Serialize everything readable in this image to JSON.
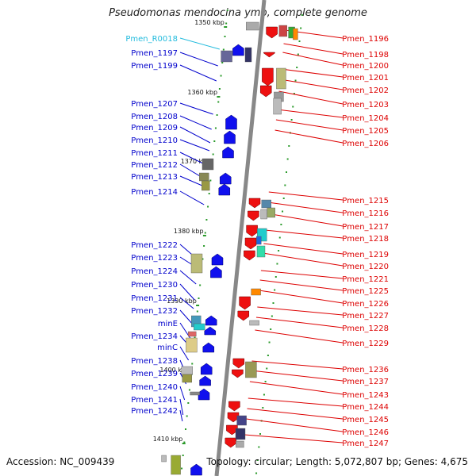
{
  "title": "Pseudomonas mendocina ymp, complete genome",
  "footer": {
    "accession": "Accession: NC_009439",
    "stats": "Topology: circular; Length: 5,072,807 bp; Genes: 4,675"
  },
  "colors": {
    "left_label": "#0000cc",
    "right_label": "#dd0000",
    "rna_label": "#22bbdd",
    "forward_arrow": "#1010ee",
    "reverse_arrow": "#ee1010",
    "backbone": "#888888",
    "tick": "#2a9a2a"
  },
  "scale_labels": [
    "1350 kbp",
    "1360 kbp",
    "1370 kbp",
    "1380 kbp",
    "1390 kbp",
    "1400 kbp",
    "1410 kbp"
  ],
  "left_labels": [
    {
      "text": "Pmen_R0018",
      "type": "rna"
    },
    {
      "text": "Pmen_1197"
    },
    {
      "text": "Pmen_1199"
    },
    {
      "text": "Pmen_1207"
    },
    {
      "text": "Pmen_1208"
    },
    {
      "text": "Pmen_1209"
    },
    {
      "text": "Pmen_1210"
    },
    {
      "text": "Pmen_1211"
    },
    {
      "text": "Pmen_1212"
    },
    {
      "text": "Pmen_1213"
    },
    {
      "text": "Pmen_1214"
    },
    {
      "text": "Pmen_1222"
    },
    {
      "text": "Pmen_1223"
    },
    {
      "text": "Pmen_1224"
    },
    {
      "text": "Pmen_1230"
    },
    {
      "text": "Pmen_1231"
    },
    {
      "text": "Pmen_1232"
    },
    {
      "text": "minE"
    },
    {
      "text": "Pmen_1234"
    },
    {
      "text": "minC"
    },
    {
      "text": "Pmen_1238"
    },
    {
      "text": "Pmen_1239"
    },
    {
      "text": "Pmen_1240"
    },
    {
      "text": "Pmen_1241"
    },
    {
      "text": "Pmen_1242"
    }
  ],
  "right_labels": [
    {
      "text": "Pmen_1196"
    },
    {
      "text": "Pmen_1198"
    },
    {
      "text": "Pmen_1200"
    },
    {
      "text": "Pmen_1201"
    },
    {
      "text": "Pmen_1202"
    },
    {
      "text": "Pmen_1203"
    },
    {
      "text": "Pmen_1204"
    },
    {
      "text": "Pmen_1205"
    },
    {
      "text": "Pmen_1206"
    },
    {
      "text": "Pmen_1215"
    },
    {
      "text": "Pmen_1216"
    },
    {
      "text": "Pmen_1217"
    },
    {
      "text": "Pmen_1218"
    },
    {
      "text": "Pmen_1219"
    },
    {
      "text": "Pmen_1220"
    },
    {
      "text": "Pmen_1221"
    },
    {
      "text": "Pmen_1225"
    },
    {
      "text": "Pmen_1226"
    },
    {
      "text": "Pmen_1227"
    },
    {
      "text": "Pmen_1228"
    },
    {
      "text": "Pmen_1229"
    },
    {
      "text": "Pmen_1236"
    },
    {
      "text": "Pmen_1237"
    },
    {
      "text": "Pmen_1243"
    },
    {
      "text": "Pmen_1244"
    },
    {
      "text": "Pmen_1245"
    },
    {
      "text": "Pmen_1246"
    },
    {
      "text": "Pmen_1247"
    }
  ]
}
